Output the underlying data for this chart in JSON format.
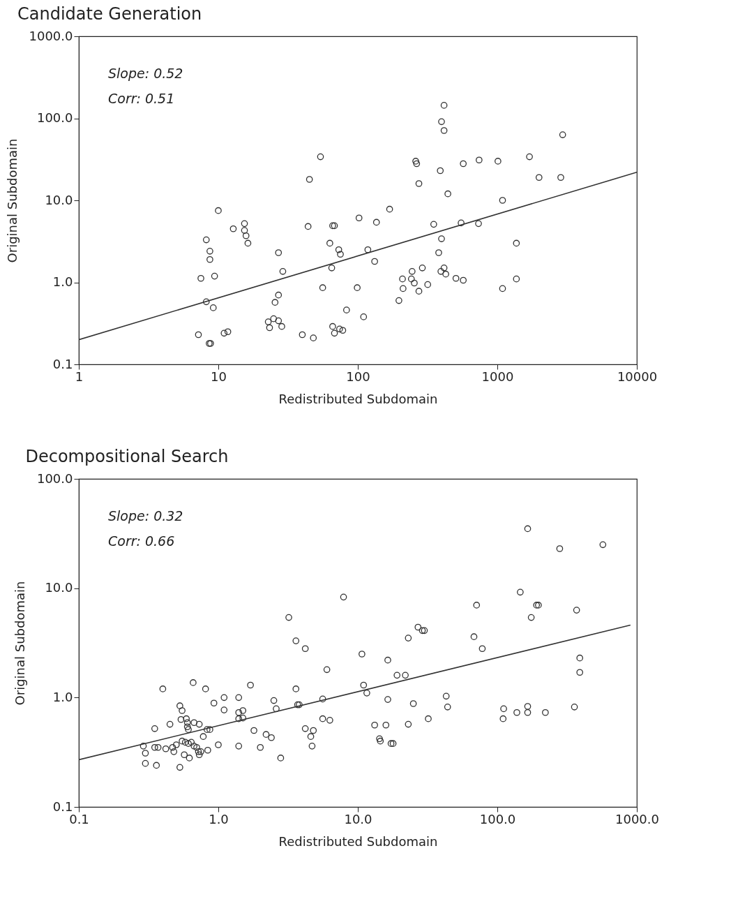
{
  "chart_data": [
    {
      "type": "scatter",
      "title": "Candidate Generation",
      "xlabel": "Redistributed  Subdomain",
      "ylabel": "Original Subdomain",
      "log": "xy",
      "grid": false,
      "annotations": [
        "Slope: 0.52",
        "Corr: 0.51"
      ],
      "xlim": [
        1,
        10000
      ],
      "xticks": [
        1,
        10,
        100,
        1000,
        10000
      ],
      "ylim": [
        0.1,
        1000
      ],
      "yticks": [
        0.1,
        {
          "value": 1,
          "label": "1.0"
        },
        {
          "value": 10,
          "label": "10.0"
        },
        {
          "value": 100,
          "label": "100.0"
        },
        {
          "value": 1000,
          "label": "1000.0"
        }
      ],
      "series": [
        {
          "marker": "circle",
          "color": "#333333",
          "x": [
            7.2,
            7.5,
            8.2,
            8.2,
            8.6,
            8.8,
            8.7,
            8.7,
            9.2,
            9.4,
            10,
            11,
            11.7,
            12.8,
            15.4,
            15.4,
            15.8,
            16.3,
            22.8,
            23.3,
            24.9,
            25.5,
            27,
            27,
            27,
            28.5,
            29,
            40,
            44,
            45,
            48,
            54,
            56,
            63,
            65,
            66,
            68,
            66,
            68,
            73,
            75,
            74,
            78,
            83,
            99,
            102,
            110,
            118,
            132,
            136,
            169,
            197,
            209,
            211,
            242,
            245,
            254,
            260,
            264,
            274,
            274,
            290,
            317,
            350,
            380,
            390,
            394,
            398,
            398,
            415,
            415,
            415,
            427,
            442,
            505,
            550,
            570,
            570,
            733,
            740,
            1010,
            1090,
            1090,
            1370,
            1370,
            1700,
            1990,
            2850,
            2940
          ],
          "values": [
            0.23,
            1.12,
            3.3,
            0.58,
            0.18,
            0.18,
            2.4,
            1.9,
            0.49,
            1.19,
            7.5,
            0.24,
            0.25,
            4.5,
            5.2,
            4.3,
            3.7,
            3.0,
            0.33,
            0.28,
            0.36,
            0.57,
            2.3,
            0.7,
            0.34,
            0.29,
            1.36,
            0.23,
            4.8,
            18,
            0.21,
            34,
            0.86,
            3.0,
            1.5,
            4.9,
            4.9,
            0.29,
            0.24,
            2.5,
            2.2,
            0.27,
            0.26,
            0.46,
            0.86,
            6.1,
            0.38,
            2.5,
            1.8,
            5.4,
            7.8,
            0.6,
            1.1,
            0.84,
            1.1,
            1.36,
            0.98,
            30,
            28,
            0.78,
            16,
            1.5,
            0.94,
            5.1,
            2.3,
            23,
            1.36,
            3.4,
            91,
            144,
            71,
            1.5,
            1.26,
            12,
            1.12,
            5.3,
            1.06,
            28,
            5.2,
            31,
            30,
            0.84,
            10,
            3.0,
            1.1,
            34,
            19,
            19,
            63
          ]
        },
        {
          "type": "line",
          "color": "#333333",
          "x": [
            1,
            10000
          ],
          "values": [
            0.2,
            22
          ]
        }
      ]
    },
    {
      "type": "scatter",
      "title": "Decompositional Search",
      "xlabel": "Redistributed  Subdomain",
      "ylabel": "Original Subdomain",
      "log": "xy",
      "grid": false,
      "annotations": [
        "Slope: 0.32",
        "Corr: 0.66"
      ],
      "xlim": [
        0.1,
        1000
      ],
      "xticks": [
        0.1,
        {
          "value": 1,
          "label": "1.0"
        },
        {
          "value": 10,
          "label": "10.0"
        },
        {
          "value": 100,
          "label": "100.0"
        },
        {
          "value": 1000,
          "label": "1000.0"
        }
      ],
      "ylim": [
        0.1,
        100
      ],
      "yticks": [
        0.1,
        {
          "value": 1,
          "label": "1.0"
        },
        {
          "value": 10,
          "label": "10.0"
        },
        {
          "value": 100,
          "label": "100.0"
        }
      ],
      "series": [
        {
          "marker": "circle",
          "color": "#333333",
          "x": [
            0.29,
            0.3,
            0.3,
            0.35,
            0.35,
            0.36,
            0.37,
            0.4,
            0.42,
            0.45,
            0.47,
            0.48,
            0.5,
            0.53,
            0.53,
            0.54,
            0.55,
            0.55,
            0.57,
            0.58,
            0.59,
            0.6,
            0.6,
            0.61,
            0.61,
            0.62,
            0.64,
            0.66,
            0.67,
            0.67,
            0.7,
            0.72,
            0.73,
            0.73,
            0.75,
            0.78,
            0.81,
            0.83,
            0.84,
            0.87,
            0.93,
            1.1,
            1.1,
            1.0,
            1.4,
            1.4,
            1.4,
            1.4,
            1.5,
            1.5,
            1.7,
            1.8,
            2.0,
            2.2,
            2.4,
            2.5,
            2.6,
            2.8,
            3.2,
            3.6,
            3.6,
            3.7,
            3.8,
            4.2,
            4.2,
            4.6,
            4.7,
            4.8,
            5.6,
            5.6,
            6.0,
            6.3,
            7.9,
            10.7,
            11,
            11.6,
            13.2,
            14.3,
            14.5,
            15.9,
            16.4,
            16.4,
            17.3,
            17.9,
            19.1,
            21.9,
            23,
            23,
            25,
            27,
            29,
            30,
            32,
            43,
            44,
            68,
            71,
            78,
            110,
            111,
            138,
            146,
            165,
            165,
            165,
            175,
            191,
            197,
            221,
            280,
            357,
            370,
            390,
            390,
            571
          ],
          "values": [
            0.36,
            0.31,
            0.25,
            0.35,
            0.52,
            0.24,
            0.35,
            1.2,
            0.34,
            0.57,
            0.35,
            0.32,
            0.37,
            0.23,
            0.84,
            0.63,
            0.76,
            0.4,
            0.3,
            0.39,
            0.64,
            0.54,
            0.59,
            0.38,
            0.51,
            0.28,
            0.39,
            1.37,
            0.59,
            0.36,
            0.35,
            0.32,
            0.57,
            0.3,
            0.32,
            0.44,
            1.2,
            0.51,
            0.33,
            0.51,
            0.89,
            1.0,
            0.77,
            0.37,
            1.0,
            0.73,
            0.64,
            0.36,
            0.76,
            0.65,
            1.3,
            0.5,
            0.35,
            0.46,
            0.43,
            0.94,
            0.79,
            0.28,
            5.4,
            1.2,
            3.3,
            0.86,
            0.86,
            2.8,
            0.52,
            0.44,
            0.36,
            0.5,
            0.97,
            0.64,
            1.8,
            0.62,
            8.3,
            2.5,
            1.3,
            1.1,
            0.56,
            0.42,
            0.4,
            0.56,
            2.2,
            0.96,
            0.38,
            0.38,
            1.6,
            1.6,
            3.5,
            0.57,
            0.88,
            4.4,
            4.1,
            4.1,
            0.64,
            1.03,
            0.82,
            3.6,
            7.0,
            2.8,
            0.64,
            0.79,
            0.73,
            9.2,
            0.73,
            0.83,
            35,
            5.4,
            7.0,
            7.0,
            0.73,
            23,
            0.82,
            6.3,
            2.3,
            1.7,
            25
          ]
        },
        {
          "type": "line",
          "color": "#333333",
          "x": [
            0.1,
            900
          ],
          "values": [
            0.27,
            4.6
          ]
        }
      ]
    }
  ]
}
